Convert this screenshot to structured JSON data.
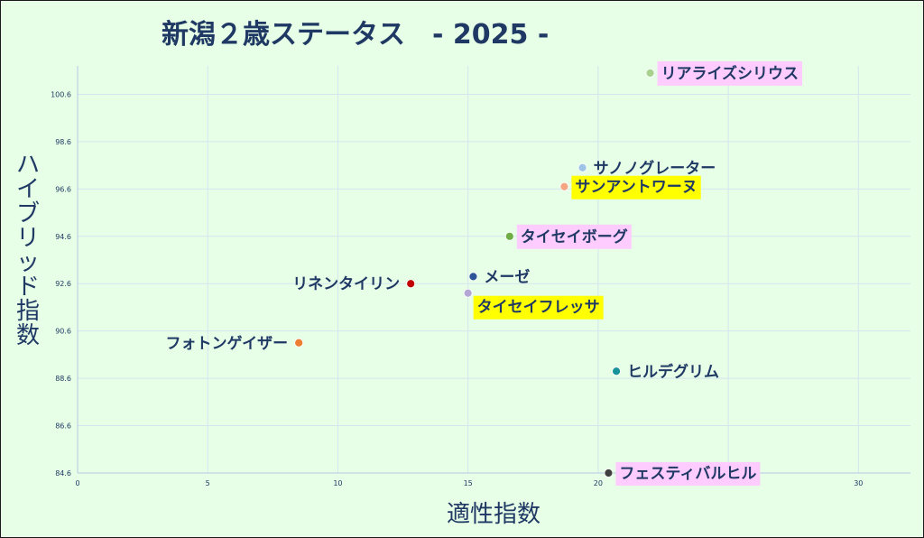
{
  "chart_data": {
    "type": "scatter",
    "title": "新潟２歳ステータス　- 2025 -",
    "xlabel": "適性指数",
    "ylabel": "ハイブリッド指数",
    "xlim": [
      0,
      32
    ],
    "ylim": [
      84.6,
      101.8
    ],
    "x_ticks": [
      0,
      5,
      10,
      15,
      20,
      25,
      30
    ],
    "x_tick_labels": [
      "0",
      "5",
      "10",
      "15",
      "20",
      "25",
      "30"
    ],
    "y_ticks": [
      84.6,
      86.6,
      88.6,
      90.6,
      92.6,
      94.6,
      96.6,
      98.6,
      100.6
    ],
    "y_tick_labels": [
      "84.6",
      "86.6",
      "88.6",
      "90.6",
      "92.6",
      "94.6",
      "96.6",
      "98.6",
      "100.6"
    ],
    "grid": true,
    "legend": "none",
    "points": [
      {
        "label": "リアライズシリウス",
        "x": 22.0,
        "y": 101.5,
        "color": "#a9d18e",
        "highlight": "#ffccff",
        "label_side": "right"
      },
      {
        "label": "サノノグレーター",
        "x": 19.4,
        "y": 97.5,
        "color": "#9dc3e6",
        "highlight": "",
        "label_side": "right"
      },
      {
        "label": "サンアントワーヌ",
        "x": 18.7,
        "y": 96.7,
        "color": "#f4a582",
        "highlight": "#ffff00",
        "label_side": "right"
      },
      {
        "label": "タイセイボーグ",
        "x": 16.6,
        "y": 94.6,
        "color": "#70ad47",
        "highlight": "#ffccff",
        "label_side": "right"
      },
      {
        "label": "メーゼ",
        "x": 15.2,
        "y": 92.9,
        "color": "#2e5597",
        "highlight": "",
        "label_side": "right"
      },
      {
        "label": "リネンタイリン",
        "x": 12.8,
        "y": 92.6,
        "color": "#c00000",
        "highlight": "",
        "label_side": "left"
      },
      {
        "label": "タイセイフレッサ",
        "x": 15.0,
        "y": 92.2,
        "color": "#b4a7d6",
        "highlight": "#ffff00",
        "label_side": "right-below"
      },
      {
        "label": "フォトンゲイザー",
        "x": 8.5,
        "y": 90.1,
        "color": "#ed7d31",
        "highlight": "",
        "label_side": "left"
      },
      {
        "label": "ヒルデグリム",
        "x": 20.7,
        "y": 88.9,
        "color": "#17949a",
        "highlight": "",
        "label_side": "right"
      },
      {
        "label": "フェスティバルヒル",
        "x": 20.4,
        "y": 84.6,
        "color": "#404040",
        "highlight": "#ffccff",
        "label_side": "right"
      }
    ]
  }
}
